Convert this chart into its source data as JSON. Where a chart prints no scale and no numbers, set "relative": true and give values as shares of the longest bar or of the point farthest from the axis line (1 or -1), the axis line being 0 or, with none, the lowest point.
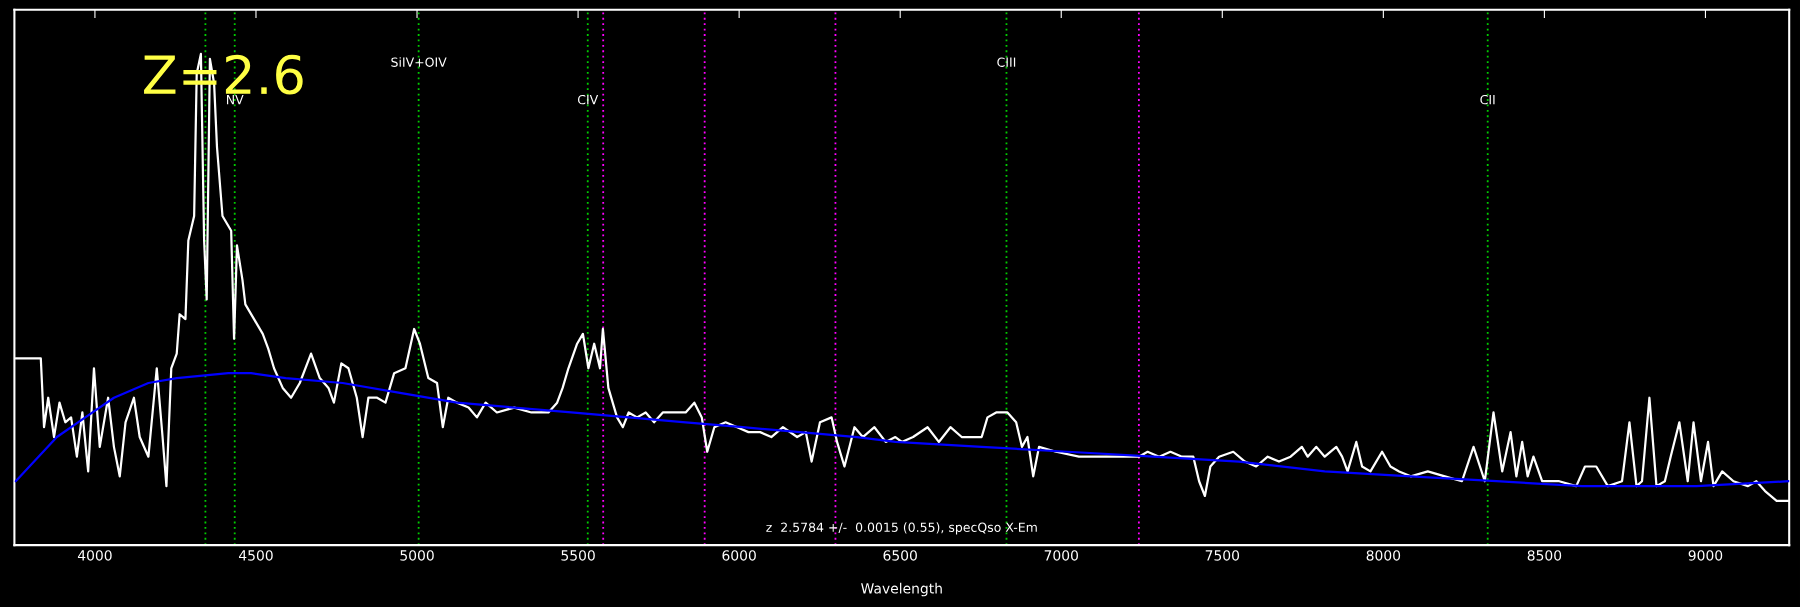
{
  "chart_data": {
    "type": "line",
    "relative": true,
    "xlabel": "Wavelength",
    "xlim": [
      3750,
      9260
    ],
    "xticks": [
      4000,
      4500,
      5000,
      5500,
      6000,
      6500,
      7000,
      7500,
      8000,
      8500,
      9000
    ],
    "grid": false,
    "marker": "none",
    "line_style": "solid",
    "annotations": [
      "Z=2.6",
      "z  2.5784 +/-  0.0015 (0.55), specQso X-Em"
    ],
    "ref_lines": [
      {
        "axis": "x",
        "value": 4343,
        "label": null,
        "color": "#00cc00",
        "line_style": "dotted"
      },
      {
        "axis": "x",
        "value": 4434,
        "label": "NV",
        "color": "#00cc00",
        "line_style": "dotted"
      },
      {
        "axis": "x",
        "value": 5005,
        "label": "SiIV+OIV",
        "color": "#00cc00",
        "line_style": "dotted"
      },
      {
        "axis": "x",
        "value": 5530,
        "label": "CIV",
        "color": "#00cc00",
        "line_style": "dotted"
      },
      {
        "axis": "x",
        "value": 6830,
        "label": "CIII",
        "color": "#00cc00",
        "line_style": "dotted"
      },
      {
        "axis": "x",
        "value": 8324,
        "label": "CII",
        "color": "#00cc00",
        "line_style": "dotted"
      },
      {
        "axis": "x",
        "value": 5578,
        "label": null,
        "color": "#ff00ff",
        "line_style": "dotted"
      },
      {
        "axis": "x",
        "value": 5893,
        "label": null,
        "color": "#ff00ff",
        "line_style": "dotted"
      },
      {
        "axis": "x",
        "value": 6299,
        "label": null,
        "color": "#ff00ff",
        "line_style": "dotted"
      },
      {
        "axis": "x",
        "value": 7241,
        "label": null,
        "color": "#ff00ff",
        "line_style": "dotted"
      }
    ],
    "series": [
      {
        "color": "#ffffff",
        "x": [
          3754,
          3832,
          3842,
          3855,
          3873,
          3890,
          3908,
          3926,
          3944,
          3961,
          3979,
          3997,
          4015,
          4041,
          4059,
          4077,
          4095,
          4121,
          4139,
          4166,
          4192,
          4210,
          4222,
          4237,
          4254,
          4263,
          4281,
          4290,
          4308,
          4316,
          4329,
          4339,
          4347,
          4357,
          4370,
          4379,
          4396,
          4423,
          4432,
          4441,
          4458,
          4467,
          4494,
          4521,
          4538,
          4556,
          4583,
          4609,
          4636,
          4671,
          4698,
          4725,
          4742,
          4765,
          4787,
          4813,
          4831,
          4849,
          4876,
          4902,
          4929,
          4964,
          4991,
          5009,
          5035,
          5062,
          5080,
          5097,
          5124,
          5160,
          5186,
          5213,
          5248,
          5302,
          5355,
          5408,
          5435,
          5452,
          5470,
          5497,
          5515,
          5532,
          5550,
          5568,
          5577,
          5594,
          5621,
          5639,
          5657,
          5683,
          5710,
          5736,
          5763,
          5799,
          5834,
          5861,
          5884,
          5901,
          5923,
          5958,
          5994,
          6029,
          6065,
          6100,
          6136,
          6180,
          6207,
          6225,
          6251,
          6287,
          6304,
          6327,
          6358,
          6384,
          6420,
          6455,
          6485,
          6505,
          6540,
          6585,
          6620,
          6656,
          6691,
          6753,
          6771,
          6798,
          6833,
          6860,
          6878,
          6895,
          6913,
          6931,
          6984,
          7055,
          7126,
          7197,
          7241,
          7268,
          7304,
          7339,
          7375,
          7410,
          7428,
          7446,
          7463,
          7490,
          7534,
          7570,
          7605,
          7641,
          7676,
          7712,
          7747,
          7765,
          7792,
          7818,
          7854,
          7872,
          7889,
          7916,
          7934,
          7960,
          7996,
          8022,
          8049,
          8085,
          8138,
          8191,
          8244,
          8280,
          8315,
          8342,
          8369,
          8395,
          8413,
          8431,
          8448,
          8466,
          8493,
          8546,
          8599,
          8626,
          8661,
          8697,
          8741,
          8764,
          8786,
          8803,
          8826,
          8848,
          8874,
          8892,
          8919,
          8945,
          8963,
          8986,
          9008,
          9025,
          9052,
          9087,
          9132,
          9158,
          9185,
          9221,
          9260
        ],
        "values": [
          0.38,
          0.38,
          0.24,
          0.3,
          0.22,
          0.29,
          0.25,
          0.26,
          0.18,
          0.27,
          0.15,
          0.36,
          0.2,
          0.3,
          0.2,
          0.14,
          0.25,
          0.3,
          0.22,
          0.18,
          0.36,
          0.22,
          0.12,
          0.36,
          0.39,
          0.47,
          0.46,
          0.62,
          0.67,
          0.96,
          1.0,
          0.62,
          0.5,
          0.99,
          0.94,
          0.81,
          0.67,
          0.64,
          0.42,
          0.61,
          0.54,
          0.49,
          0.46,
          0.43,
          0.4,
          0.36,
          0.32,
          0.3,
          0.33,
          0.39,
          0.34,
          0.32,
          0.29,
          0.37,
          0.36,
          0.3,
          0.22,
          0.3,
          0.3,
          0.29,
          0.35,
          0.36,
          0.44,
          0.41,
          0.34,
          0.33,
          0.24,
          0.3,
          0.29,
          0.28,
          0.26,
          0.29,
          0.27,
          0.28,
          0.27,
          0.27,
          0.29,
          0.32,
          0.36,
          0.41,
          0.43,
          0.36,
          0.41,
          0.36,
          0.44,
          0.32,
          0.26,
          0.24,
          0.27,
          0.26,
          0.27,
          0.25,
          0.27,
          0.27,
          0.27,
          0.29,
          0.26,
          0.19,
          0.24,
          0.25,
          0.24,
          0.23,
          0.23,
          0.22,
          0.24,
          0.22,
          0.23,
          0.17,
          0.25,
          0.26,
          0.21,
          0.16,
          0.24,
          0.22,
          0.24,
          0.21,
          0.22,
          0.21,
          0.22,
          0.24,
          0.21,
          0.24,
          0.22,
          0.22,
          0.26,
          0.27,
          0.27,
          0.25,
          0.2,
          0.22,
          0.14,
          0.2,
          0.19,
          0.18,
          0.18,
          0.18,
          0.18,
          0.19,
          0.18,
          0.19,
          0.18,
          0.18,
          0.13,
          0.1,
          0.16,
          0.18,
          0.19,
          0.17,
          0.16,
          0.18,
          0.17,
          0.18,
          0.2,
          0.18,
          0.2,
          0.18,
          0.2,
          0.18,
          0.15,
          0.21,
          0.16,
          0.15,
          0.19,
          0.16,
          0.15,
          0.14,
          0.15,
          0.14,
          0.13,
          0.2,
          0.13,
          0.27,
          0.15,
          0.23,
          0.14,
          0.21,
          0.14,
          0.18,
          0.13,
          0.13,
          0.12,
          0.16,
          0.16,
          0.12,
          0.13,
          0.25,
          0.12,
          0.13,
          0.3,
          0.12,
          0.13,
          0.18,
          0.25,
          0.13,
          0.25,
          0.13,
          0.21,
          0.12,
          0.15,
          0.13,
          0.12,
          0.13,
          0.11,
          0.09,
          0.09
        ]
      },
      {
        "color": "#0000ff",
        "x": [
          3754,
          3882,
          3970,
          4059,
          4166,
          4254,
          4414,
          4485,
          4592,
          4769,
          4947,
          5124,
          5302,
          5479,
          5657,
          5834,
          6011,
          6189,
          6366,
          6485,
          6753,
          7020,
          7286,
          7552,
          7818,
          8085,
          8351,
          8617,
          8972,
          9260
        ],
        "values": [
          0.13,
          0.22,
          0.26,
          0.3,
          0.33,
          0.34,
          0.35,
          0.35,
          0.34,
          0.33,
          0.31,
          0.29,
          0.28,
          0.27,
          0.26,
          0.25,
          0.24,
          0.23,
          0.22,
          0.21,
          0.2,
          0.19,
          0.18,
          0.17,
          0.15,
          0.14,
          0.13,
          0.12,
          0.12,
          0.13
        ]
      }
    ]
  }
}
